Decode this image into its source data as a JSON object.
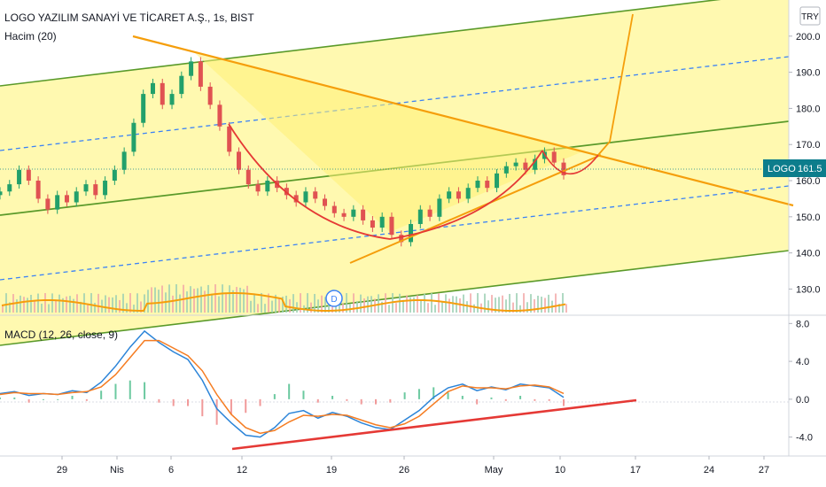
{
  "header": {
    "title": "LOGO YAZILIM SANAYİ VE TİCARET A.Ş., 1s, BIST",
    "volume_label": "Hacim (20)",
    "currency": "TRY"
  },
  "macd_panel": {
    "label": "MACD (12, 26, close, 9)"
  },
  "price_badge": {
    "symbol": "LOGO",
    "value": "161.5"
  },
  "dividend_marker": "D",
  "colors": {
    "channel_fill": "#fff9b0",
    "channel_line": "#5a9a2a",
    "dashed_line": "#3b82f6",
    "orange": "#f59e0b",
    "red": "#e53935",
    "up_candle": "#22a06b",
    "down_candle": "#e05252",
    "macd_line": "#2b84d8",
    "signal_line": "#f57c21"
  },
  "chart_data": [
    {
      "type": "line",
      "title": "LOGO YAZILIM SANAYİ VE TİCARET A.Ş., 1s, BIST",
      "ylim": [
        123,
        210
      ],
      "y_ticks": [
        "130.0",
        "140.0",
        "150.0",
        "160.0",
        "170.0",
        "180.0",
        "190.0",
        "200.0"
      ],
      "x_ticks": [
        "29",
        "Nis",
        "6",
        "12",
        "19",
        "26",
        "May",
        "10",
        "17",
        "24",
        "27"
      ],
      "series": [
        {
          "values": [
            157,
            159,
            163,
            160,
            155,
            152,
            156,
            154,
            157,
            159,
            156,
            160,
            163,
            168,
            176,
            184,
            187,
            181,
            184,
            189,
            193,
            186,
            181,
            175,
            168,
            163,
            159,
            157,
            160,
            158,
            156,
            154,
            157,
            155,
            153,
            151,
            150,
            152,
            149,
            147,
            150,
            145,
            143,
            148,
            152,
            150,
            155,
            157,
            155,
            158,
            160,
            158,
            162,
            164,
            165,
            163,
            166,
            168,
            165,
            161.5
          ]
        }
      ],
      "last_value": 161.5
    },
    {
      "type": "bar",
      "title": "MACD (12, 26, close, 9)",
      "ylim": [
        -6,
        8.5
      ],
      "y_ticks": [
        "8.0",
        "4.0",
        "0.0",
        "-4.0"
      ],
      "series": [
        {
          "values": [
            0.6,
            0.8,
            0.4,
            0.6,
            0.5,
            0.9,
            0.7,
            1.8,
            3.5,
            5.5,
            7.2,
            6.0,
            5.0,
            4.2,
            2.0,
            -1.0,
            -2.5,
            -3.8,
            -4.0,
            -3.0,
            -1.5,
            -1.2,
            -2.0,
            -1.4,
            -1.8,
            -2.5,
            -3.0,
            -3.2,
            -2.2,
            -1.2,
            0.2,
            1.2,
            1.6,
            0.9,
            1.3,
            1.0,
            1.6,
            1.4,
            1.2,
            0.2
          ]
        },
        {
          "values": [
            0.5,
            0.7,
            0.6,
            0.6,
            0.5,
            0.7,
            0.8,
            1.3,
            2.6,
            4.4,
            6.2,
            6.2,
            5.4,
            4.6,
            3.0,
            0.5,
            -1.6,
            -3.0,
            -3.6,
            -3.3,
            -2.4,
            -1.7,
            -1.8,
            -1.6,
            -1.7,
            -2.2,
            -2.7,
            -3.0,
            -2.6,
            -1.8,
            -0.5,
            0.8,
            1.4,
            1.2,
            1.2,
            1.1,
            1.4,
            1.5,
            1.3,
            0.6
          ]
        }
      ]
    }
  ]
}
